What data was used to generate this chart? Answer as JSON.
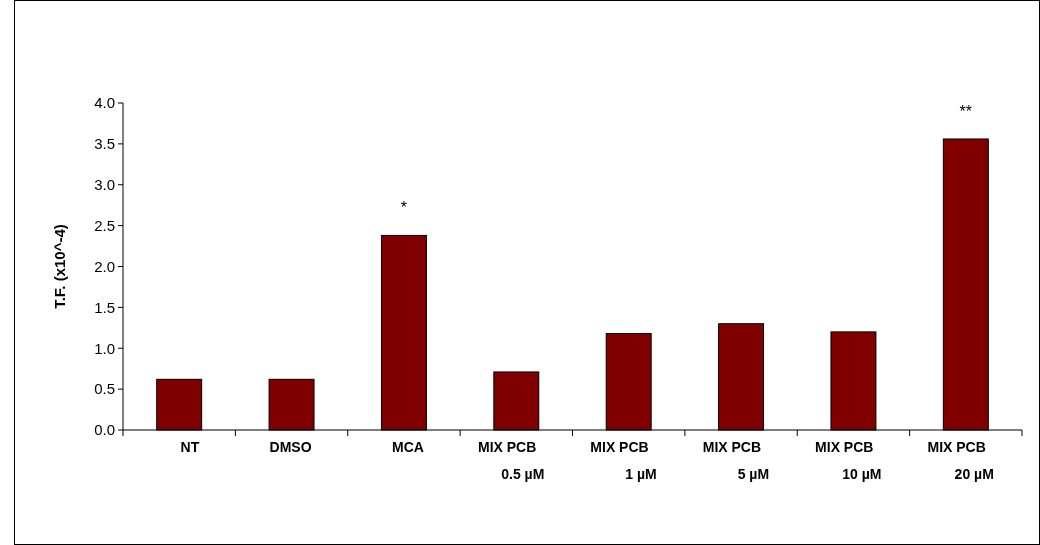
{
  "chart_data": {
    "type": "bar",
    "ylabel": "T.F. (x10^-4)",
    "categories": [
      "NT",
      "DMSO",
      "MCA",
      "MIX PCB\n0.5 µM",
      "MIX PCB\n1 µM",
      "MIX PCB\n5 µM",
      "MIX PCB\n10 µM",
      "MIX PCB\n20 µM"
    ],
    "values": [
      0.62,
      0.62,
      2.38,
      0.71,
      1.18,
      1.3,
      1.2,
      3.56
    ],
    "color": "#800000",
    "ylim": [
      0,
      4
    ],
    "yticks": [
      {
        "value": 0,
        "label": "0.0"
      },
      {
        "value": 0.5,
        "label": "0.5"
      },
      {
        "value": 1,
        "label": "1.0"
      },
      {
        "value": 1.5,
        "label": "1.5"
      },
      {
        "value": 2,
        "label": "2.0"
      },
      {
        "value": 2.5,
        "label": "2.5"
      },
      {
        "value": 3,
        "label": "3.0"
      },
      {
        "value": 3.5,
        "label": "3.5"
      },
      {
        "value": 4,
        "label": "4.0"
      }
    ],
    "annotations": [
      {
        "text": "*",
        "x": "MCA",
        "y": 2.38
      },
      {
        "text": "**",
        "x": "MIX PCB\n20 µM",
        "y": 3.56
      }
    ],
    "grid": false
  }
}
